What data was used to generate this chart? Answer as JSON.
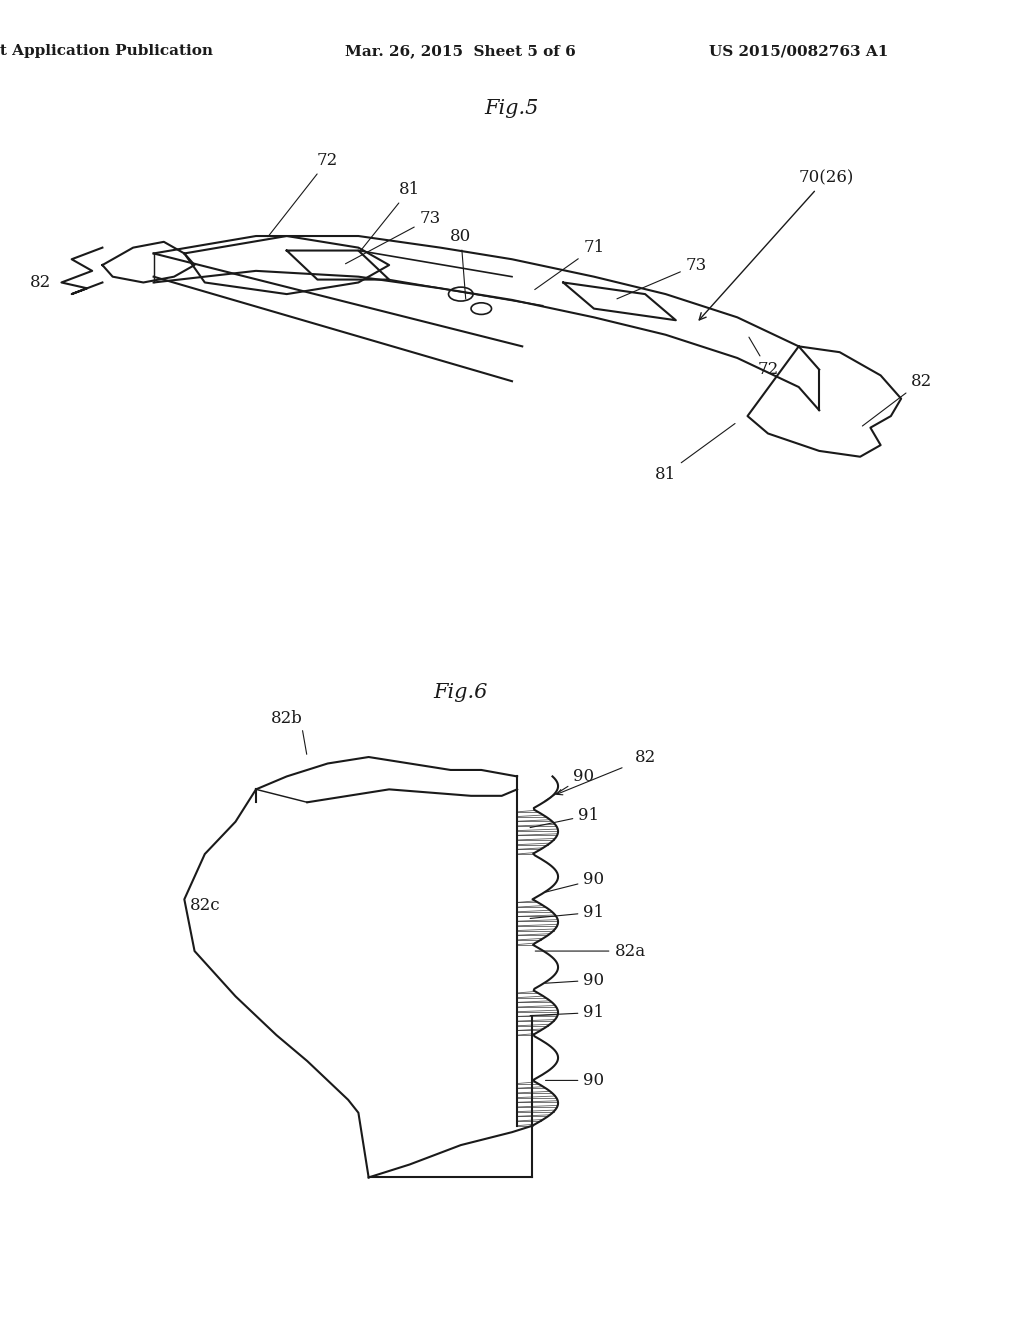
{
  "background_color": "#ffffff",
  "header_left": "Patent Application Publication",
  "header_middle": "Mar. 26, 2015  Sheet 5 of 6",
  "header_right": "US 2015/0082763 A1",
  "fig5_title": "Fig.5",
  "fig6_title": "Fig.6",
  "line_color": "#1a1a1a",
  "hatch_color": "#555555",
  "label_color": "#1a1a1a",
  "header_fontsize": 11,
  "fig_title_fontsize": 15,
  "label_fontsize": 12
}
